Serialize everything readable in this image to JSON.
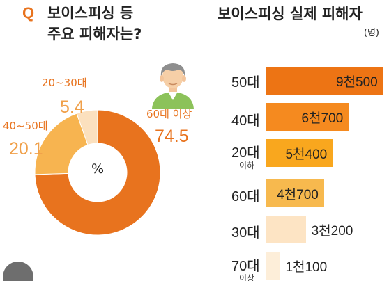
{
  "left_title": {
    "badge": "Q",
    "line1": "보이스피싱 등",
    "line2": "주요 피해자는?"
  },
  "right_title": {
    "line1": "보이스피싱 실제 피해자",
    "unit": "(명)"
  },
  "colors": {
    "accent": "#e8731e",
    "orange_dark": "#ed7414",
    "orange_mid": "#f59a25",
    "orange_light": "#f7b94e",
    "peach": "#fbe0be",
    "pale": "#fdeed9"
  },
  "chart_data": [
    {
      "type": "pie",
      "donut": true,
      "center_label": "%",
      "slices": [
        {
          "label": "60대 이상",
          "value": 74.5,
          "value_text": "74.5",
          "color": "#e8731e"
        },
        {
          "label": "40~50대",
          "value": 20.1,
          "value_text": "20.1",
          "color": "#f7b450"
        },
        {
          "label": "20~30대",
          "value": 5.4,
          "value_text": "5.4",
          "color": "#fbe0be"
        }
      ]
    },
    {
      "type": "bar",
      "orientation": "horizontal",
      "categories": [
        "50대",
        "40대",
        "20대",
        "60대",
        "30대",
        "70대"
      ],
      "category_sublabels": [
        "",
        "",
        "이하",
        "",
        "",
        "이상"
      ],
      "values": [
        9500,
        6700,
        5400,
        4700,
        3200,
        1100
      ],
      "value_labels": [
        "9천500",
        "6천700",
        "5천400",
        "4천700",
        "3천200",
        "1천100"
      ],
      "colors": [
        "#ed7414",
        "#f58a1f",
        "#f9a71e",
        "#f7b94e",
        "#fde4c4",
        "#fdeed9"
      ],
      "xlim": [
        0,
        9500
      ]
    }
  ]
}
